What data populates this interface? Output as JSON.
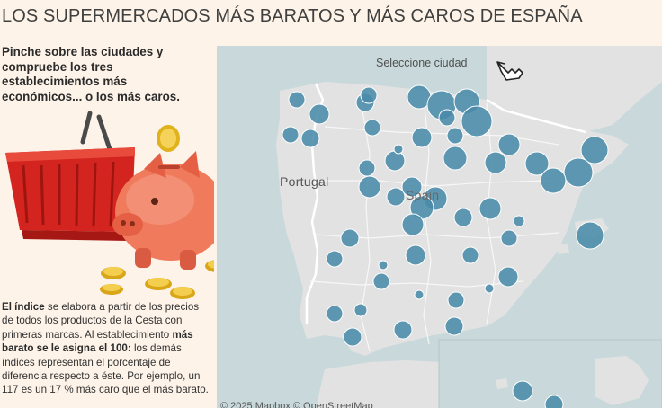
{
  "header": {
    "title": "LOS SUPERMERCADOS MÁS BARATOS Y MÁS CAROS DE ESPAÑA"
  },
  "intro": {
    "text": "Pinche sobre las ciudades y compruebe los tres establecimientos más económicos... o los más caros."
  },
  "description": {
    "p1_bold": "El índice",
    "p1_rest": " se elabora a partir de los precios de todos los productos de la Cesta con primeras marcas. Al establecimiento ",
    "p2_bold": "más barato se le asigna el 100:",
    "p2_rest": " los demás índices representan el porcentaje de diferencia respecto a éste. Por ejemplo, un 117 es un 17 % más caro que el más barato."
  },
  "map": {
    "hint": "Seleccione ciudad",
    "label_portugal": "Portugal",
    "label_spain": "Spain",
    "attribution": "© 2025 Mapbox  © OpenStreetMap",
    "city_marker_color": "#4a8ba8",
    "land_color": "#e2e2e2",
    "water_color": "#c9d9db"
  },
  "icons": [
    "pointer-hand-icon",
    "shopping-basket-icon",
    "piggy-bank-icon",
    "coins-icon"
  ]
}
